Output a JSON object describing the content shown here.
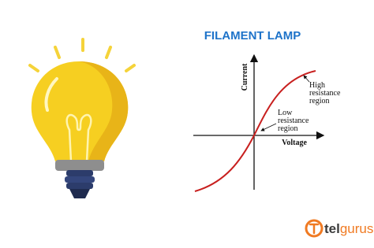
{
  "title": "FILAMENT LAMP",
  "axes": {
    "y_label": "Current",
    "x_label": "Voltage"
  },
  "annotations": {
    "high": [
      "High",
      "resistance",
      "region"
    ],
    "low": [
      "Low",
      "resistance",
      "region"
    ]
  },
  "logo": {
    "parts": [
      "tel",
      "gurus"
    ]
  }
}
